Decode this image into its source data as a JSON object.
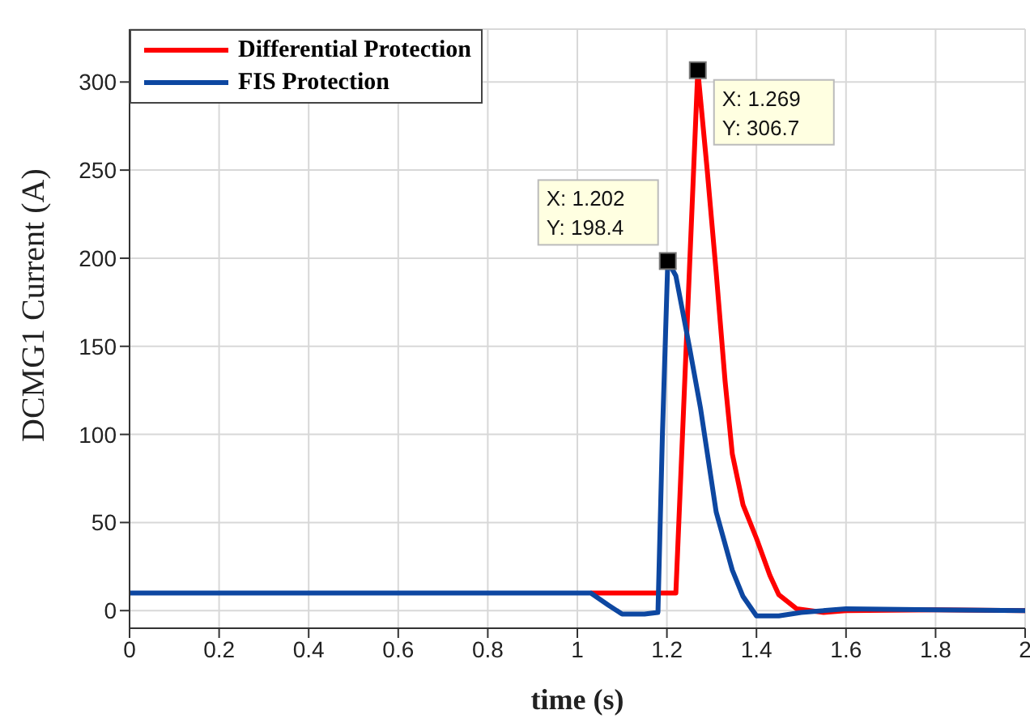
{
  "chart_data": {
    "type": "line",
    "xlabel": "time (s)",
    "ylabel": "DCMG1 Current (A)",
    "xlim": [
      0,
      2
    ],
    "xticks": [
      0,
      0.2,
      0.4,
      0.6,
      0.8,
      1,
      1.2,
      1.4,
      1.6,
      1.8,
      2
    ],
    "ylim": [
      -10,
      330
    ],
    "yticks": [
      0,
      50,
      100,
      150,
      200,
      250,
      300
    ],
    "grid": true,
    "legend": "top left",
    "marker": "none",
    "line_style": "solid",
    "series": [
      {
        "name": "Differential Protection",
        "color": "#ff0000",
        "x": [
          1.03,
          1.22,
          1.269,
          1.29,
          1.31,
          1.33,
          1.346,
          1.37,
          1.4,
          1.43,
          1.45,
          1.49,
          1.55,
          1.6,
          1.8,
          2
        ],
        "values": [
          10,
          10,
          306.7,
          250,
          192,
          130,
          89,
          60,
          41,
          20,
          9,
          1,
          -1,
          0,
          0.5,
          0
        ]
      },
      {
        "name": "FIS Protection",
        "color": "#0d47a1",
        "x": [
          0,
          1.03,
          1.07,
          1.1,
          1.15,
          1.18,
          1.19,
          1.202,
          1.22,
          1.25,
          1.275,
          1.31,
          1.346,
          1.37,
          1.4,
          1.45,
          1.5,
          1.6,
          1.8,
          2
        ],
        "values": [
          10,
          10,
          3,
          -2,
          -2,
          -1,
          100,
          198.4,
          190,
          150,
          115,
          56,
          23,
          8,
          -3,
          -3,
          -1,
          1,
          0.5,
          0
        ]
      }
    ],
    "annotations": [
      {
        "text": "X: 1.202\nY: 198.4",
        "x": 1.202,
        "y": 198.4
      },
      {
        "text": "X: 1.269\nY: 306.7",
        "x": 1.269,
        "y": 306.7
      }
    ]
  }
}
